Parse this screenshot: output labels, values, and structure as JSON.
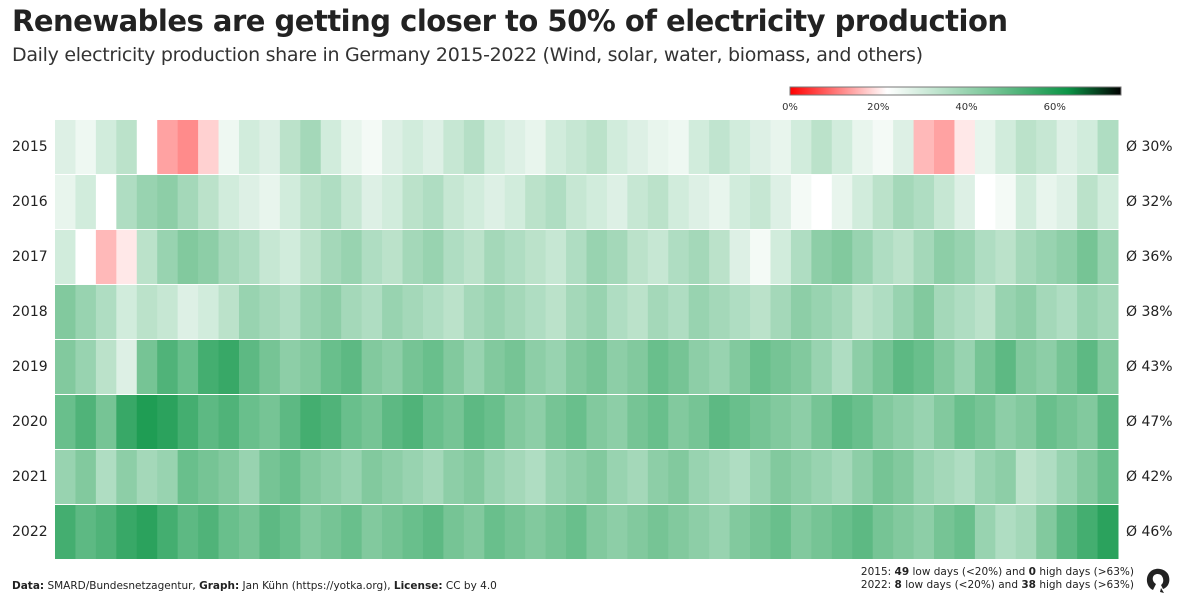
{
  "header": {
    "title": "Renewables are getting closer to 50% of electricity production",
    "subtitle": "Daily electricity production share in Germany 2015-2022 (Wind, solar, water, biomass, and others)"
  },
  "chart_data": {
    "type": "heatmap",
    "title": "Renewables are getting closer to 50% of electricity production",
    "subtitle": "Daily electricity production share in Germany 2015-2022 (Wind, solar, water, biomass, and others)",
    "resolution_note_values": "approximate weekly values (%) read from the daily heatmap",
    "rows": [
      "2015",
      "2016",
      "2017",
      "2018",
      "2019",
      "2020",
      "2021",
      "2022"
    ],
    "row_averages": [
      "Ø 30%",
      "Ø 32%",
      "Ø 36%",
      "Ø 38%",
      "Ø 43%",
      "Ø 47%",
      "Ø 42%",
      "Ø 46%"
    ],
    "values": {
      "2015": [
        28,
        25,
        30,
        34,
        22,
        14,
        12,
        18,
        25,
        30,
        28,
        34,
        38,
        30,
        26,
        24,
        28,
        30,
        28,
        32,
        35,
        30,
        28,
        26,
        30,
        32,
        34,
        30,
        28,
        26,
        25,
        30,
        33,
        30,
        28,
        26,
        30,
        34,
        30,
        26,
        24,
        28,
        16,
        14,
        20,
        26,
        30,
        34,
        32,
        28,
        30,
        36
      ],
      "2016": [
        26,
        30,
        22,
        36,
        40,
        42,
        38,
        34,
        30,
        28,
        26,
        30,
        34,
        36,
        32,
        28,
        30,
        34,
        36,
        32,
        30,
        28,
        30,
        34,
        36,
        32,
        30,
        28,
        32,
        34,
        30,
        28,
        26,
        30,
        32,
        28,
        24,
        22,
        26,
        30,
        34,
        38,
        36,
        32,
        28,
        22,
        24,
        30,
        26,
        28,
        34,
        30
      ],
      "2017": [
        30,
        22,
        16,
        20,
        34,
        40,
        44,
        42,
        38,
        36,
        32,
        30,
        34,
        38,
        40,
        36,
        34,
        38,
        40,
        36,
        34,
        38,
        36,
        34,
        32,
        36,
        40,
        38,
        34,
        32,
        36,
        38,
        34,
        28,
        24,
        30,
        36,
        42,
        44,
        40,
        36,
        34,
        38,
        42,
        40,
        36,
        34,
        38,
        40,
        42,
        46,
        40
      ],
      "2018": [
        44,
        40,
        36,
        30,
        34,
        32,
        28,
        30,
        34,
        40,
        38,
        36,
        40,
        42,
        38,
        36,
        40,
        38,
        36,
        34,
        38,
        40,
        38,
        36,
        34,
        38,
        40,
        36,
        34,
        38,
        36,
        40,
        38,
        36,
        34,
        38,
        42,
        40,
        38,
        34,
        36,
        40,
        44,
        38,
        36,
        34,
        40,
        42,
        38,
        36,
        40,
        38
      ],
      "2019": [
        44,
        40,
        34,
        28,
        46,
        52,
        48,
        54,
        56,
        50,
        46,
        42,
        44,
        48,
        50,
        44,
        42,
        46,
        48,
        44,
        40,
        44,
        46,
        42,
        40,
        44,
        46,
        42,
        44,
        48,
        46,
        42,
        40,
        44,
        48,
        46,
        44,
        40,
        36,
        42,
        46,
        50,
        48,
        44,
        40,
        46,
        50,
        44,
        42,
        46,
        50,
        44
      ],
      "2020": [
        48,
        52,
        46,
        56,
        60,
        58,
        54,
        50,
        52,
        48,
        46,
        50,
        54,
        52,
        48,
        46,
        50,
        52,
        48,
        46,
        50,
        48,
        44,
        42,
        46,
        48,
        44,
        42,
        46,
        48,
        44,
        46,
        50,
        48,
        46,
        44,
        42,
        46,
        50,
        48,
        44,
        42,
        40,
        44,
        48,
        46,
        42,
        44,
        48,
        46,
        44,
        50
      ],
      "2021": [
        40,
        44,
        36,
        42,
        38,
        40,
        48,
        46,
        44,
        40,
        46,
        48,
        44,
        42,
        40,
        44,
        42,
        40,
        38,
        42,
        44,
        40,
        38,
        36,
        40,
        42,
        44,
        40,
        38,
        42,
        44,
        40,
        38,
        36,
        40,
        44,
        42,
        40,
        38,
        42,
        46,
        44,
        40,
        38,
        36,
        40,
        42,
        34,
        36,
        40,
        44,
        48
      ],
      "2022": [
        54,
        50,
        52,
        56,
        58,
        54,
        50,
        52,
        48,
        46,
        50,
        48,
        44,
        46,
        48,
        44,
        46,
        48,
        50,
        46,
        44,
        48,
        46,
        44,
        46,
        48,
        44,
        42,
        44,
        46,
        44,
        42,
        40,
        44,
        46,
        48,
        44,
        46,
        48,
        50,
        46,
        44,
        42,
        46,
        48,
        40,
        36,
        38,
        44,
        50,
        54,
        58
      ]
    },
    "color_scale": {
      "range": [
        0,
        75
      ],
      "stops": [
        {
          "value": 0,
          "color": "#ff0000"
        },
        {
          "value": 22,
          "color": "#ffffff"
        },
        {
          "value": 45,
          "color": "#7cc79a"
        },
        {
          "value": 63,
          "color": "#0c9446"
        },
        {
          "value": 75,
          "color": "#000000"
        }
      ],
      "tick_labels": [
        "0%",
        "20%",
        "40%",
        "60%"
      ],
      "tick_values": [
        0,
        20,
        40,
        60
      ]
    },
    "legend_position": "top-right",
    "grid": false
  },
  "footer": {
    "data_label": "Data:",
    "data_value": "SMARD/Bundesnetzagentur,",
    "graph_label": "Graph:",
    "graph_value": "Jan Kühn (https://yotka.org),",
    "license_label": "License:",
    "license_value": "CC by 4.0",
    "stats": [
      {
        "year": "2015:",
        "low": "49",
        "low_text": "low days (<20%) and",
        "high": "0",
        "high_text": "high days (>63%)"
      },
      {
        "year": "2022:",
        "low": "8",
        "low_text": "low days (<20%) and",
        "high": "38",
        "high_text": "high days (>63%)"
      }
    ]
  }
}
